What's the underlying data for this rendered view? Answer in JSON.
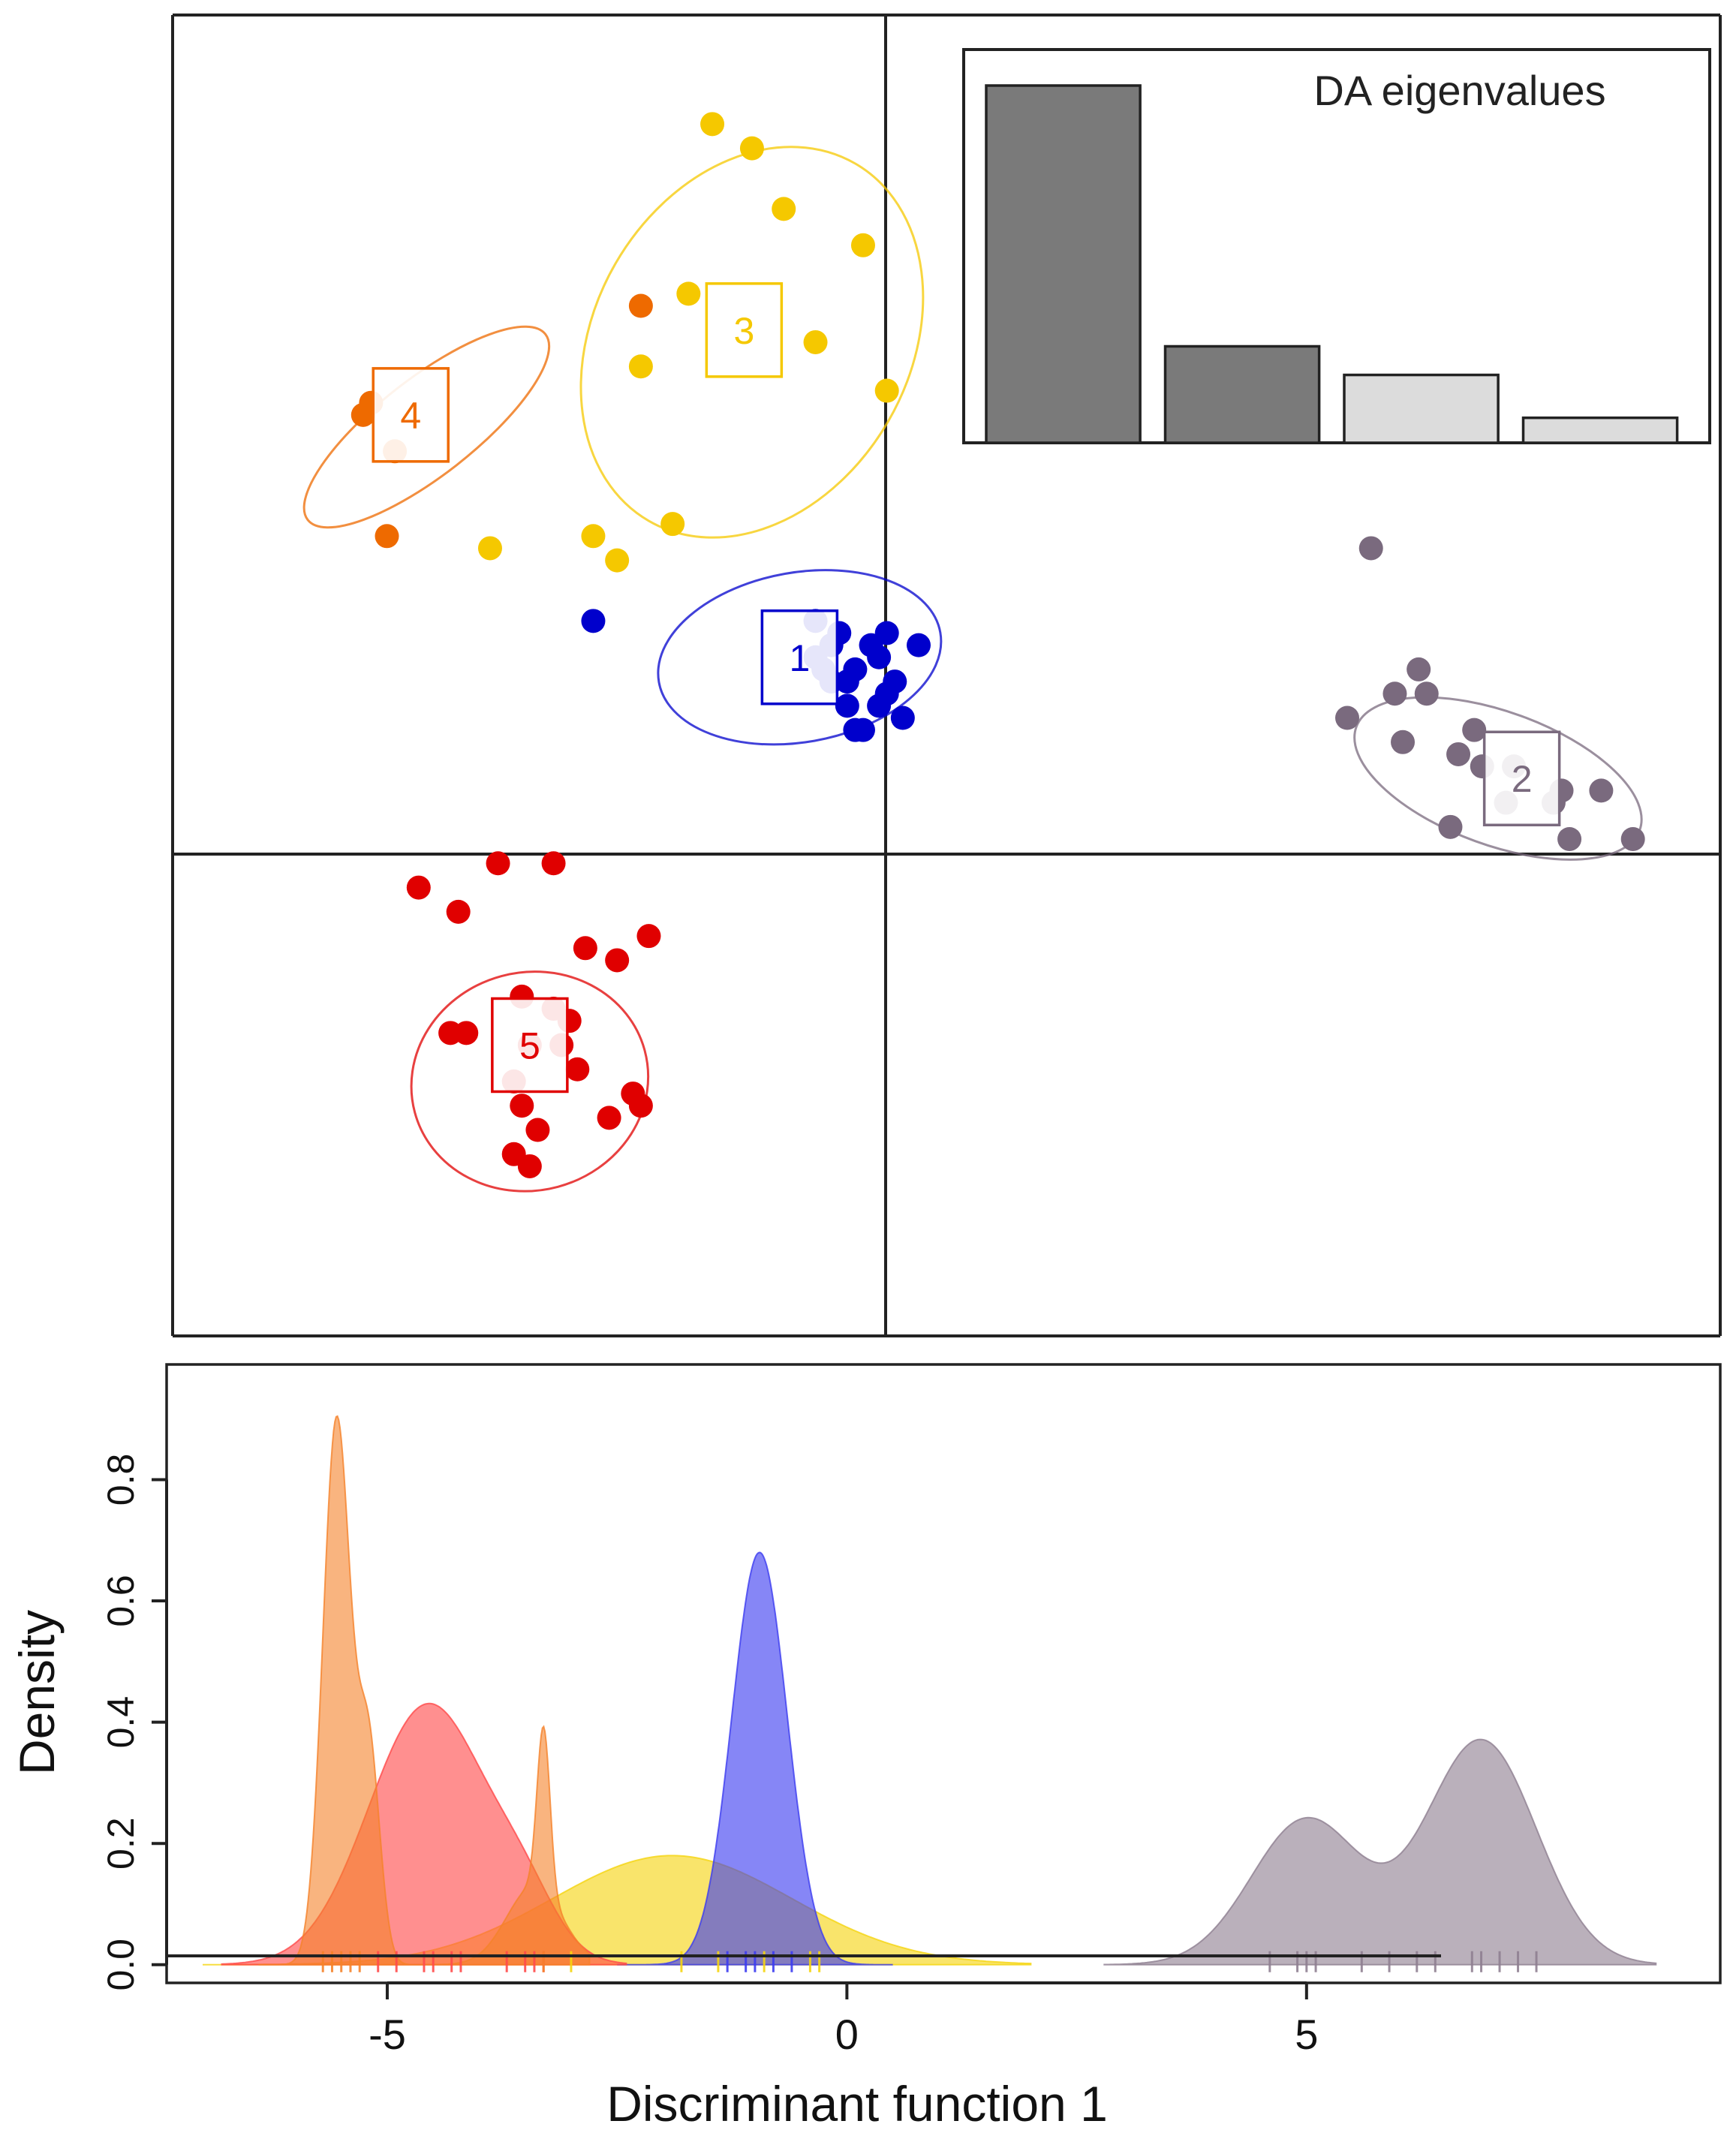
{
  "chart_data": [
    {
      "type": "scatter",
      "title": "",
      "xlabel": "",
      "ylabel": "",
      "xlim": [
        -9.5,
        10.0
      ],
      "ylim": [
        -5.0,
        5.9
      ],
      "axes_lines": "through origin",
      "groups": [
        {
          "id": "1",
          "label": "1",
          "color": "#0000cc",
          "points": [
            [
              -1.4,
              0.9
            ],
            [
              -1.1,
              0.8
            ],
            [
              -0.4,
              0.4
            ],
            [
              -0.7,
              0.7
            ],
            [
              -1.0,
              0.2
            ],
            [
              -0.6,
              0.2
            ],
            [
              -0.8,
              0.0
            ],
            [
              -0.3,
              0.1
            ],
            [
              -0.9,
              0.5
            ],
            [
              -1.4,
              0.6
            ],
            [
              -1.2,
              0.7
            ],
            [
              -0.5,
              0.3
            ],
            [
              -4.2,
              0.9
            ],
            [
              -1.3,
              0.5
            ],
            [
              -0.6,
              0.6
            ],
            [
              -1.0,
              0.4
            ],
            [
              -0.9,
              0.0
            ],
            [
              -0.1,
              0.7
            ],
            [
              -0.5,
              0.8
            ],
            [
              -1.2,
              0.4
            ]
          ],
          "centroid": [
            -1.6,
            0.6
          ],
          "ellipse": {
            "cx": -1.6,
            "cy": 0.6,
            "rx": 1.8,
            "ry": 0.7,
            "angle": 10
          }
        },
        {
          "id": "2",
          "label": "2",
          "color": "#7a6a7e",
          "points": [
            [
              5.6,
              1.5
            ],
            [
              6.2,
              0.5
            ],
            [
              6.9,
              0.0
            ],
            [
              6.6,
              -0.8
            ],
            [
              7.3,
              -0.6
            ],
            [
              8.0,
              -0.5
            ],
            [
              8.9,
              -0.9
            ],
            [
              8.5,
              -0.5
            ],
            [
              6.0,
              -0.1
            ],
            [
              5.3,
              0.1
            ],
            [
              6.3,
              0.3
            ],
            [
              7.4,
              -0.3
            ],
            [
              7.9,
              -0.6
            ],
            [
              8.1,
              -0.9
            ],
            [
              7.0,
              -0.3
            ],
            [
              6.7,
              -0.2
            ],
            [
              5.9,
              0.3
            ]
          ],
          "centroid": [
            7.5,
            -0.4
          ],
          "ellipse": {
            "cx": 7.2,
            "cy": -0.4,
            "rx": 1.9,
            "ry": 0.55,
            "angle": -20
          }
        },
        {
          "id": "3",
          "label": "3",
          "color": "#f5c800",
          "points": [
            [
              -2.7,
              5.0
            ],
            [
              -2.2,
              4.8
            ],
            [
              -1.8,
              4.3
            ],
            [
              -0.8,
              4.0
            ],
            [
              -3.0,
              3.6
            ],
            [
              -1.4,
              3.2
            ],
            [
              -3.6,
              3.0
            ],
            [
              -0.5,
              2.8
            ],
            [
              -3.2,
              1.7
            ],
            [
              -5.5,
              1.5
            ],
            [
              -4.2,
              1.6
            ],
            [
              -3.9,
              1.4
            ]
          ],
          "centroid": [
            -2.3,
            3.3
          ],
          "ellipse": {
            "cx": -2.2,
            "cy": 3.2,
            "rx": 2.6,
            "ry": 1.3,
            "angle": 60
          }
        },
        {
          "id": "4",
          "label": "4",
          "color": "#ee6a00",
          "points": [
            [
              -3.6,
              3.5
            ],
            [
              -7.1,
              2.6
            ],
            [
              -7.0,
              2.7
            ],
            [
              -6.8,
              1.6
            ],
            [
              -6.7,
              2.3
            ]
          ],
          "centroid": [
            -6.5,
            2.6
          ],
          "ellipse": {
            "cx": -6.3,
            "cy": 2.5,
            "rx": 1.9,
            "ry": 0.4,
            "angle": 38
          }
        },
        {
          "id": "5",
          "label": "5",
          "color": "#e00000",
          "points": [
            [
              -6.4,
              -1.3
            ],
            [
              -5.4,
              -1.1
            ],
            [
              -4.7,
              -1.1
            ],
            [
              -5.9,
              -1.5
            ],
            [
              -3.5,
              -1.7
            ],
            [
              -3.9,
              -1.9
            ],
            [
              -4.3,
              -1.8
            ],
            [
              -5.1,
              -2.2
            ],
            [
              -4.7,
              -2.3
            ],
            [
              -4.5,
              -2.4
            ],
            [
              -5.8,
              -2.5
            ],
            [
              -6.0,
              -2.5
            ],
            [
              -5.0,
              -2.6
            ],
            [
              -4.6,
              -2.6
            ],
            [
              -4.4,
              -2.8
            ],
            [
              -3.7,
              -3.0
            ],
            [
              -4.0,
              -3.2
            ],
            [
              -5.1,
              -3.1
            ],
            [
              -5.2,
              -2.9
            ],
            [
              -4.9,
              -3.3
            ],
            [
              -3.6,
              -3.1
            ],
            [
              -5.2,
              -3.5
            ],
            [
              -5.0,
              -3.6
            ]
          ],
          "centroid": [
            -5.0,
            -2.6
          ],
          "ellipse": {
            "cx": -5.0,
            "cy": -2.9,
            "rx": 1.5,
            "ry": 0.9,
            "angle": 15
          }
        }
      ],
      "inset": {
        "type": "bar",
        "title": "DA eigenvalues",
        "values": [
          100,
          27,
          19,
          7
        ],
        "retained": [
          true,
          true,
          false,
          false
        ],
        "retained_color": "#7a7a7a",
        "other_color": "#dcdcdc"
      }
    },
    {
      "type": "area",
      "title": "",
      "xlabel": "Discriminant function  1",
      "ylabel": "Density",
      "xlim": [
        -7.4,
        9.5
      ],
      "ylim": [
        -0.03,
        0.99
      ],
      "xticks": [
        -5,
        0,
        5
      ],
      "xtick_labels": [
        "-5",
        "0",
        "5"
      ],
      "yticks": [
        0.0,
        0.2,
        0.4,
        0.6,
        0.8
      ],
      "ytick_labels": [
        "0.0",
        "0.2",
        "0.4",
        "0.6",
        "0.8"
      ],
      "series": [
        {
          "name": "3",
          "color": "#f5d410",
          "opacity": 0.62,
          "range": [
            -7.0,
            2.0
          ],
          "components": [
            [
              -1.9,
              1.3,
              0.18
            ]
          ],
          "rug": [
            -3.0,
            -1.8,
            -1.4,
            -0.9,
            -0.4,
            -0.3
          ]
        },
        {
          "name": "1",
          "color": "#3c3cf0",
          "opacity": 0.62,
          "range": [
            -2.5,
            0.5
          ],
          "components": [
            [
              -0.95,
              0.3,
              0.68
            ]
          ],
          "rug": [
            -1.3,
            -1.1,
            -1.0,
            -0.8,
            -0.6
          ]
        },
        {
          "name": "5",
          "color": "#ff4a4a",
          "opacity": 0.62,
          "range": [
            -6.8,
            -2.4
          ],
          "components": [
            [
              -4.55,
              0.65,
              0.43
            ],
            [
              -3.5,
              0.35,
              0.07
            ]
          ],
          "rug": [
            -5.1,
            -4.9,
            -4.6,
            -4.5,
            -4.3,
            -4.2,
            -3.7,
            -3.5,
            -3.4,
            -3.3
          ]
        },
        {
          "name": "4",
          "color": "#f5822a",
          "opacity": 0.6,
          "range": [
            -6.4,
            -2.8
          ],
          "components": [
            [
              -5.55,
              0.15,
              0.9
            ],
            [
              -5.2,
              0.12,
              0.35
            ],
            [
              -3.3,
              0.07,
              0.27
            ],
            [
              -3.4,
              0.3,
              0.13
            ]
          ],
          "rug": [
            -5.7,
            -5.6,
            -5.5,
            -5.4,
            -5.3,
            -3.3
          ]
        },
        {
          "name": "2",
          "color": "#8f7f91",
          "opacity": 0.62,
          "range": [
            2.8,
            8.8
          ],
          "components": [
            [
              5.0,
              0.6,
              0.24
            ],
            [
              6.9,
              0.6,
              0.37
            ]
          ],
          "rug": [
            4.6,
            4.9,
            5.0,
            5.1,
            5.6,
            5.9,
            6.2,
            6.4,
            6.8,
            6.9,
            7.1,
            7.3,
            7.5
          ]
        }
      ]
    }
  ]
}
